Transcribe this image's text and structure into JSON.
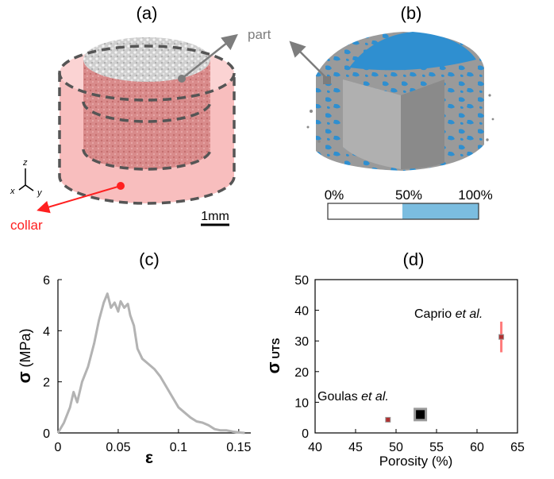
{
  "panels": {
    "a": {
      "label": "(a)",
      "part_label": "part",
      "collar_label": "collar",
      "scale_label": "1mm",
      "axes": {
        "z": "z",
        "x": "x",
        "y": "y"
      }
    },
    "b": {
      "label": "(b)",
      "colorbar_ticks": [
        "0%",
        "50%",
        "100%"
      ],
      "colorbar_fill_fraction": 0.5,
      "colors": {
        "solid": "#9a9a9a",
        "pore": "#2f8fd0",
        "bar_fill": "#7bbde0"
      }
    },
    "c": {
      "label": "(c)"
    },
    "d": {
      "label": "(d)"
    }
  },
  "colors": {
    "collar": "#f7b3b3",
    "part": "#d98b8b",
    "collar_text": "#ff2020",
    "stress_curve": "#b3b3b3",
    "marker_red": "#b03030",
    "errorbar_red": "#ff7a7a",
    "marker_black": "#000000"
  },
  "chart_data": [
    {
      "type": "line",
      "panel": "c",
      "title": "",
      "xlabel": "ε",
      "ylabel_symbol": "σ",
      "ylabel_unit": "(MPa)",
      "xlim": [
        0,
        0.16
      ],
      "ylim": [
        0,
        6
      ],
      "xticks": [
        0,
        0.05,
        0.1,
        0.15
      ],
      "xtick_labels": [
        "0",
        "0.05",
        "0.1",
        "0.15"
      ],
      "yticks": [
        0,
        2,
        4,
        6
      ],
      "ytick_labels": [
        "0",
        "2",
        "4",
        "6"
      ],
      "x": [
        0,
        0.005,
        0.01,
        0.013,
        0.016,
        0.02,
        0.025,
        0.03,
        0.034,
        0.038,
        0.041,
        0.044,
        0.047,
        0.05,
        0.052,
        0.055,
        0.058,
        0.06,
        0.063,
        0.066,
        0.07,
        0.075,
        0.08,
        0.085,
        0.09,
        0.095,
        0.1,
        0.105,
        0.11,
        0.115,
        0.12,
        0.125,
        0.13,
        0.135,
        0.14,
        0.145,
        0.15,
        0.155
      ],
      "y": [
        0,
        0.4,
        1.0,
        1.6,
        1.2,
        2.0,
        2.6,
        3.5,
        4.4,
        5.1,
        5.45,
        4.9,
        5.1,
        4.75,
        5.15,
        4.9,
        5.05,
        4.6,
        4.2,
        3.3,
        2.9,
        2.7,
        2.5,
        2.2,
        1.8,
        1.4,
        1.0,
        0.8,
        0.6,
        0.45,
        0.4,
        0.3,
        0.15,
        0.1,
        0.1,
        0.05,
        0.02,
        0.0
      ]
    },
    {
      "type": "scatter",
      "panel": "d",
      "title": "",
      "xlabel": "Porosity (%)",
      "ylabel_symbol": "σ",
      "ylabel_sub": "UTS",
      "xlim": [
        40,
        65
      ],
      "ylim": [
        0,
        50
      ],
      "xticks": [
        40,
        45,
        50,
        55,
        60,
        65
      ],
      "xtick_labels": [
        "40",
        "45",
        "50",
        "55",
        "60",
        "65"
      ],
      "yticks": [
        0,
        10,
        20,
        30,
        40,
        50
      ],
      "ytick_labels": [
        "0",
        "10",
        "20",
        "30",
        "40",
        "50"
      ],
      "points": [
        {
          "x": 49,
          "y": 4.3,
          "err": 0,
          "style": "small-red",
          "annotation": "Goulas",
          "annotation_em": "et al."
        },
        {
          "x": 53,
          "y": 6.0,
          "err": 0,
          "style": "big-black",
          "annotation": "",
          "annotation_em": ""
        },
        {
          "x": 63,
          "y": 31.3,
          "err": 5.0,
          "style": "small-red",
          "annotation": "Caprio",
          "annotation_em": "et al."
        }
      ]
    }
  ]
}
